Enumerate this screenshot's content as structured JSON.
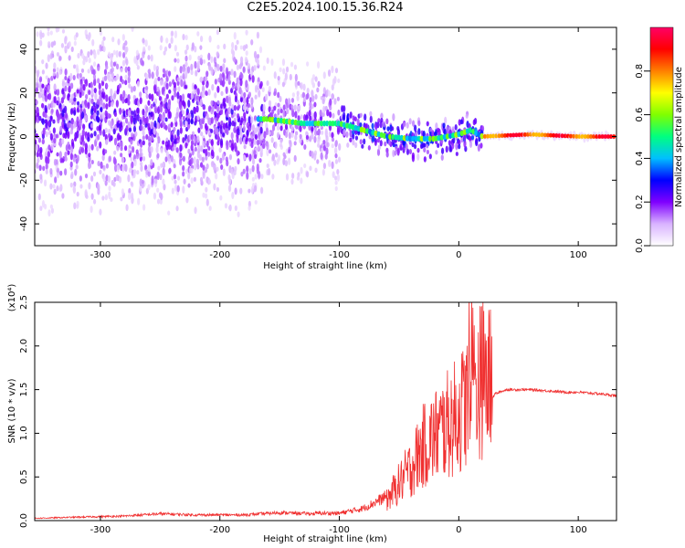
{
  "title": "C2E5.2024.100.15.36.R24",
  "chart_data": [
    {
      "type": "heatmap",
      "xlabel": "Height of straight line (km)",
      "ylabel": "Frequency (Hz)",
      "xlim": [
        -355,
        132
      ],
      "ylim": [
        -50,
        50
      ],
      "xticks": [
        -300,
        -200,
        -100,
        0,
        100
      ],
      "yticks": [
        -40,
        -20,
        0,
        20,
        40
      ],
      "colorbar": {
        "label": "Normalized spectral amplitude",
        "range": [
          0.0,
          1.0
        ],
        "ticks": [
          "0.0",
          "0.2",
          "0.4",
          "0.6",
          "0.8"
        ],
        "colors": [
          "#ffffff",
          "#d9b3ff",
          "#7f00ff",
          "#0000ff",
          "#00bfff",
          "#00ff80",
          "#80ff00",
          "#ffff00",
          "#ff8000",
          "#ff0000",
          "#ff0066"
        ]
      },
      "ridge": {
        "heights": [
          -160,
          -130,
          -100,
          -80,
          -60,
          -40,
          -20,
          0,
          10,
          20,
          60,
          100,
          130
        ],
        "frequency": [
          8,
          6,
          6,
          3,
          0,
          -1,
          -1,
          1,
          3,
          0,
          1,
          0,
          0
        ]
      }
    },
    {
      "type": "line",
      "xlabel": "Height of straight line (km)",
      "ylabel": "SNR (10 * v/v)",
      "yscale_note": "(x10⁴)",
      "xlim": [
        -355,
        132
      ],
      "ylim": [
        0,
        2.5
      ],
      "xticks": [
        -300,
        -200,
        -100,
        0,
        100
      ],
      "yticks": [
        "0.0",
        "0.5",
        "1.0",
        "1.5",
        "2.0",
        "2.5"
      ],
      "color": "#f03030",
      "series": [
        {
          "x": [
            -355,
            -320,
            -280,
            -250,
            -220,
            -200,
            -180,
            -150,
            -120,
            -100,
            -80,
            -60,
            -50,
            -40,
            -30,
            -20,
            -10,
            0,
            10,
            15,
            20,
            25,
            30,
            40,
            60,
            80,
            90,
            100,
            120,
            132
          ],
          "y": [
            0.02,
            0.03,
            0.04,
            0.06,
            0.05,
            0.05,
            0.05,
            0.07,
            0.06,
            0.06,
            0.1,
            0.2,
            0.35,
            0.5,
            0.7,
            0.8,
            0.9,
            1.0,
            1.2,
            1.3,
            1.35,
            1.3,
            1.45,
            1.5,
            1.5,
            1.48,
            1.47,
            1.47,
            1.45,
            1.43
          ]
        }
      ]
    }
  ]
}
